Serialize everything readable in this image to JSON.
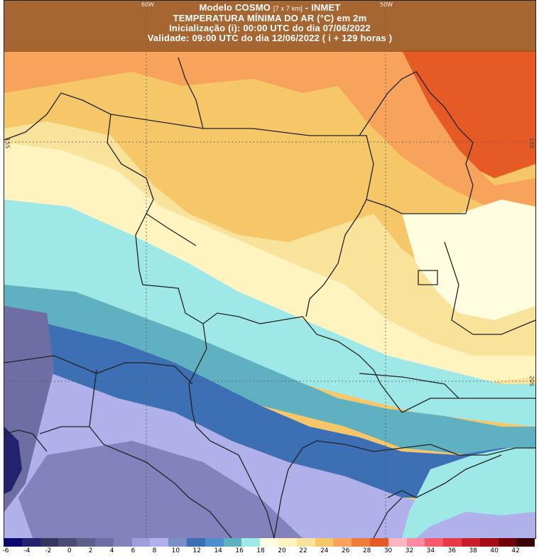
{
  "header": {
    "line1_prefix": "Modelo COSMO ",
    "line1_small": "[7 x 7 km]",
    "line1_suffix": " - INMET",
    "line2": "TEMPERATURA MÍNIMA DO AR (°C) em 2m",
    "line3": "Inicialização (i): 00:00 UTC do dia 07/06/2022",
    "line4": "Validade: 09:00 UTC do dia 12/06/2022 ( i + 129 horas )"
  },
  "grid_labels": {
    "lon_60w": "60W",
    "lon_50w": "50W",
    "lat_15s": "15S",
    "lat_20s": "20S"
  },
  "colorbar": {
    "ticks": [
      "-6",
      "-4",
      "-2",
      "0",
      "2",
      "4",
      "6",
      "8",
      "10",
      "12",
      "14",
      "16",
      "18",
      "20",
      "22",
      "24",
      "26",
      "28",
      "30",
      "32",
      "34",
      "36",
      "38",
      "40",
      "42"
    ],
    "colors": [
      "#0a0a6e",
      "#23236e",
      "#353560",
      "#4a4a72",
      "#5e5e8a",
      "#6e6ea4",
      "#8482bd",
      "#9f9ddc",
      "#b0b0ea",
      "#7a8fc8",
      "#3d6fb5",
      "#4c8fcc",
      "#5fb0c0",
      "#9fe8e8",
      "#fffde0",
      "#fff3c0",
      "#f9e39a",
      "#f6c768",
      "#f8a35b",
      "#ef7e3d",
      "#e65a25",
      "#ffb6c0",
      "#fd8aa0",
      "#f55a6a",
      "#e83a45",
      "#c81e2a",
      "#a30c14",
      "#6e0006",
      "#3a0004"
    ]
  }
}
